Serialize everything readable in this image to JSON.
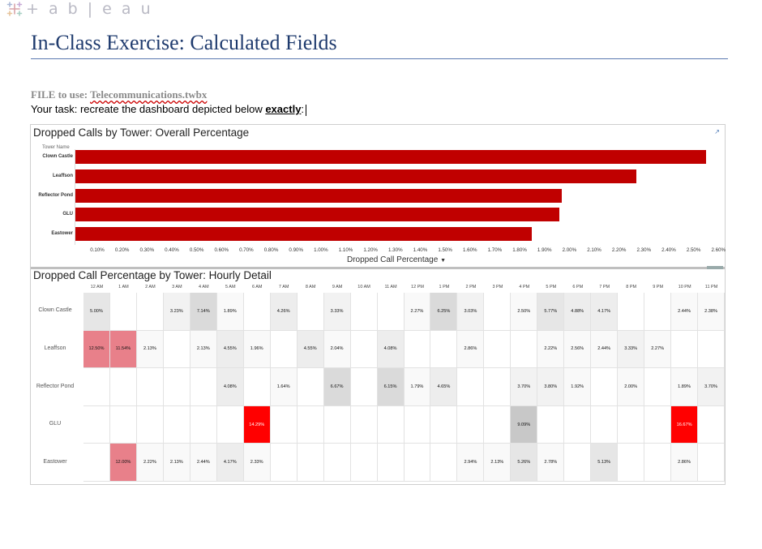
{
  "logo": {
    "text": "+ a b | e a u"
  },
  "document": {
    "title": "In-Class Exercise: Calculated Fields",
    "file_label": "FILE to use: ",
    "file_name": "Telecommunications.twbx",
    "task_prefix": "Your task: recreate the dashboard depicted below ",
    "task_emphasis": "exactly",
    "task_suffix": ":"
  },
  "colors": {
    "bar": "#c00000",
    "heat_max": "#ff0000",
    "title_blue": "#1f3b6e"
  },
  "bar_sheet": {
    "title": "Dropped Calls by Tower: Overall Percentage",
    "row_header": "Tower Name",
    "x_axis_label": "Dropped Call Percentage"
  },
  "heat_sheet": {
    "title": "Dropped Call Percentage by Tower: Hourly Detail"
  },
  "chart_data": [
    {
      "type": "bar",
      "orientation": "horizontal",
      "title": "Dropped Calls by Tower: Overall Percentage",
      "categories": [
        "Clown Castle",
        "Leaffson",
        "Reflector Pond",
        "GLU",
        "Eastower"
      ],
      "values": [
        2.55,
        2.27,
        1.97,
        1.96,
        1.85
      ],
      "x_ticks": [
        "0.10%",
        "0.20%",
        "0.30%",
        "0.40%",
        "0.50%",
        "0.60%",
        "0.70%",
        "0.80%",
        "0.90%",
        "1.00%",
        "1.10%",
        "1.20%",
        "1.30%",
        "1.40%",
        "1.50%",
        "1.60%",
        "1.70%",
        "1.80%",
        "1.90%",
        "2.00%",
        "2.10%",
        "2.20%",
        "2.30%",
        "2.40%",
        "2.50%",
        "2.60%"
      ],
      "xlabel": "Dropped Call Percentage",
      "ylabel": "Tower Name",
      "xlim": [
        0.1,
        2.6
      ]
    },
    {
      "type": "heatmap",
      "title": "Dropped Call Percentage by Tower: Hourly Detail",
      "columns": [
        "12 AM",
        "1 AM",
        "2 AM",
        "3 AM",
        "4 AM",
        "5 AM",
        "6 AM",
        "7 AM",
        "8 AM",
        "9 AM",
        "10 AM",
        "11 AM",
        "12 PM",
        "1 PM",
        "2 PM",
        "3 PM",
        "4 PM",
        "5 PM",
        "6 PM",
        "7 PM",
        "8 PM",
        "9 PM",
        "10 PM",
        "11 PM"
      ],
      "rows": [
        "Clown Castle",
        "Leaffson",
        "Reflector Pond",
        "GLU",
        "Eastower"
      ],
      "values": [
        [
          5.0,
          null,
          null,
          3.23,
          7.14,
          1.89,
          null,
          4.26,
          null,
          3.33,
          null,
          null,
          2.27,
          6.25,
          3.03,
          null,
          2.5,
          5.77,
          4.88,
          4.17,
          null,
          null,
          2.44,
          2.38
        ],
        [
          12.5,
          11.54,
          2.13,
          null,
          2.13,
          4.55,
          1.96,
          null,
          4.55,
          2.04,
          null,
          4.08,
          null,
          null,
          2.86,
          null,
          null,
          2.22,
          2.56,
          2.44,
          3.33,
          2.27,
          null,
          null
        ],
        [
          null,
          null,
          null,
          null,
          null,
          4.08,
          null,
          1.64,
          null,
          6.67,
          null,
          6.15,
          1.79,
          4.65,
          null,
          null,
          3.7,
          3.8,
          1.92,
          null,
          2.0,
          null,
          1.89,
          3.7
        ],
        [
          null,
          null,
          null,
          null,
          null,
          null,
          14.29,
          null,
          null,
          null,
          null,
          null,
          null,
          null,
          null,
          null,
          9.09,
          null,
          null,
          null,
          null,
          null,
          16.67,
          null
        ],
        [
          null,
          12.0,
          2.22,
          2.13,
          2.44,
          4.17,
          2.33,
          null,
          null,
          null,
          null,
          null,
          null,
          null,
          2.94,
          2.13,
          5.26,
          2.78,
          null,
          5.13,
          null,
          null,
          2.86,
          null
        ]
      ],
      "labels": [
        [
          "5.00%",
          "",
          "",
          "3.23%",
          "7.14%",
          "1.89%",
          "",
          "4.26%",
          "",
          "3.33%",
          "",
          "",
          "2.27%",
          "6.25%",
          "3.03%",
          "",
          "2.50%",
          "5.77%",
          "4.88%",
          "4.17%",
          "",
          "",
          "2.44%",
          "2.38%"
        ],
        [
          "12.50%",
          "11.54%",
          "2.13%",
          "",
          "2.13%",
          "4.55%",
          "1.96%",
          "",
          "4.55%",
          "2.04%",
          "",
          "4.08%",
          "",
          "",
          "2.86%",
          "",
          "",
          "2.22%",
          "2.56%",
          "2.44%",
          "3.33%",
          "2.27%",
          "",
          ""
        ],
        [
          "",
          "",
          "",
          "",
          "",
          "4.08%",
          "",
          "1.64%",
          "",
          "6.67%",
          "",
          "6.15%",
          "1.79%",
          "4.65%",
          "",
          "",
          "3.70%",
          "3.80%",
          "1.92%",
          "",
          "2.00%",
          "",
          "1.89%",
          "3.70%"
        ],
        [
          "",
          "",
          "",
          "",
          "",
          "",
          "14.29%",
          "",
          "",
          "",
          "",
          "",
          "",
          "",
          "",
          "",
          "9.09%",
          "",
          "",
          "",
          "",
          "",
          "16.67%",
          ""
        ],
        [
          "",
          "12.00%",
          "2.22%",
          "2.13%",
          "2.44%",
          "4.17%",
          "2.33%",
          "",
          "",
          "",
          "",
          "",
          "",
          "",
          "2.94%",
          "2.13%",
          "5.26%",
          "2.78%",
          "",
          "5.13%",
          "",
          "",
          "2.86%",
          ""
        ]
      ]
    }
  ]
}
